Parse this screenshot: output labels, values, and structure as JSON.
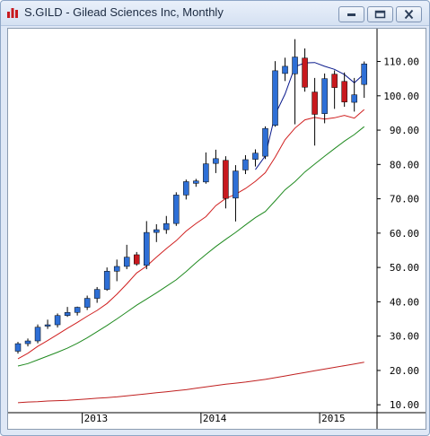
{
  "window": {
    "title": "S.GILD - Gilead Sciences Inc, Monthly",
    "controls": [
      "minimize",
      "maximize",
      "close"
    ]
  },
  "chart_data": {
    "type": "candlestick",
    "title": "",
    "symbol": "S.GILD",
    "ylim": [
      7.7,
      118.5
    ],
    "y_ticks": [
      "10.00",
      "20.00",
      "30.00",
      "40.00",
      "50.00",
      "60.00",
      "70.00",
      "80.00",
      "90.00",
      "100.00",
      "110.00"
    ],
    "x_ticks": [
      "2013",
      "2014",
      "2015"
    ],
    "grid": false,
    "colors": {
      "up": "#2e6fd6",
      "down": "#c8191e",
      "line_fast": "#0a1a8c",
      "line_mid": "#d01f1f",
      "line_slow": "#1f8a1f",
      "line_long": "#c02020"
    },
    "candles": [
      {
        "open": 25.6,
        "high": 28.3,
        "low": 24.9,
        "close": 27.8
      },
      {
        "open": 27.8,
        "high": 29.3,
        "low": 27.0,
        "close": 28.6
      },
      {
        "open": 28.6,
        "high": 33.4,
        "low": 27.9,
        "close": 32.6
      },
      {
        "open": 32.9,
        "high": 34.8,
        "low": 32.1,
        "close": 33.3
      },
      {
        "open": 33.3,
        "high": 36.6,
        "low": 32.5,
        "close": 36.0
      },
      {
        "open": 36.0,
        "high": 38.5,
        "low": 35.6,
        "close": 36.9
      },
      {
        "open": 36.9,
        "high": 38.6,
        "low": 36.0,
        "close": 38.4
      },
      {
        "open": 38.4,
        "high": 41.8,
        "low": 37.6,
        "close": 41.0
      },
      {
        "open": 41.0,
        "high": 44.3,
        "low": 39.7,
        "close": 43.6
      },
      {
        "open": 43.6,
        "high": 50.0,
        "low": 43.2,
        "close": 48.9
      },
      {
        "open": 48.9,
        "high": 52.3,
        "low": 46.0,
        "close": 50.3
      },
      {
        "open": 50.3,
        "high": 56.6,
        "low": 49.5,
        "close": 53.0
      },
      {
        "open": 53.7,
        "high": 54.5,
        "low": 50.5,
        "close": 51.0
      },
      {
        "open": 50.6,
        "high": 63.5,
        "low": 49.5,
        "close": 60.2
      },
      {
        "open": 60.2,
        "high": 62.6,
        "low": 57.4,
        "close": 61.0
      },
      {
        "open": 61.0,
        "high": 65.0,
        "low": 59.8,
        "close": 62.8
      },
      {
        "open": 62.8,
        "high": 71.9,
        "low": 62.1,
        "close": 71.1
      },
      {
        "open": 71.1,
        "high": 75.6,
        "low": 69.8,
        "close": 75.0
      },
      {
        "open": 74.5,
        "high": 75.8,
        "low": 73.5,
        "close": 75.2
      },
      {
        "open": 74.9,
        "high": 83.5,
        "low": 74.4,
        "close": 80.2
      },
      {
        "open": 80.3,
        "high": 84.3,
        "low": 77.5,
        "close": 81.7
      },
      {
        "open": 81.2,
        "high": 82.4,
        "low": 67.2,
        "close": 70.1
      },
      {
        "open": 70.2,
        "high": 79.8,
        "low": 63.4,
        "close": 78.1
      },
      {
        "open": 78.4,
        "high": 82.7,
        "low": 77.2,
        "close": 81.4
      },
      {
        "open": 81.5,
        "high": 84.4,
        "low": 79.4,
        "close": 83.3
      },
      {
        "open": 82.4,
        "high": 91.1,
        "low": 81.6,
        "close": 90.5
      },
      {
        "open": 91.4,
        "high": 110.1,
        "low": 91.0,
        "close": 107.3
      },
      {
        "open": 106.5,
        "high": 111.1,
        "low": 104.3,
        "close": 108.6
      },
      {
        "open": 106.4,
        "high": 116.5,
        "low": 91.7,
        "close": 111.3
      },
      {
        "open": 111.0,
        "high": 113.8,
        "low": 101.2,
        "close": 102.5
      },
      {
        "open": 101.1,
        "high": 105.2,
        "low": 85.5,
        "close": 94.6
      },
      {
        "open": 94.8,
        "high": 106.5,
        "low": 92.0,
        "close": 105.0
      },
      {
        "open": 106.3,
        "high": 107.4,
        "low": 96.2,
        "close": 102.4
      },
      {
        "open": 104.2,
        "high": 106.8,
        "low": 96.8,
        "close": 98.2
      },
      {
        "open": 98.1,
        "high": 105.2,
        "low": 95.4,
        "close": 100.3
      },
      {
        "open": 103.3,
        "high": 110.0,
        "low": 99.4,
        "close": 109.3
      }
    ],
    "series": [
      {
        "values": [
          null,
          null,
          null,
          null,
          null,
          null,
          null,
          null,
          null,
          null,
          null,
          null,
          null,
          null,
          null,
          null,
          null,
          null,
          null,
          null,
          null,
          null,
          null,
          null,
          78.5,
          82.5,
          94.5,
          100.5,
          108.5,
          109.6,
          109.7,
          108.6,
          107.7,
          106.2,
          103.8,
          106.4
        ]
      },
      {
        "values": [
          23.4,
          25.0,
          27.0,
          28.7,
          30.5,
          32.3,
          34.0,
          35.8,
          37.5,
          39.5,
          42.2,
          45.2,
          48.4,
          50.4,
          53.0,
          55.5,
          57.8,
          60.6,
          62.8,
          64.8,
          68.0,
          70.1,
          71.3,
          73.0,
          75.1,
          77.6,
          82.1,
          87.2,
          90.6,
          93.0,
          93.7,
          93.2,
          93.6,
          94.3,
          93.5,
          96.0
        ]
      },
      {
        "values": [
          21.3,
          22.0,
          23.1,
          24.2,
          25.3,
          26.5,
          27.9,
          29.5,
          31.3,
          33.1,
          35.0,
          37.0,
          39.0,
          40.8,
          42.6,
          44.5,
          46.4,
          48.8,
          51.4,
          53.8,
          56.1,
          58.2,
          60.2,
          62.4,
          64.5,
          66.3,
          69.4,
          72.6,
          75.0,
          77.8,
          80.1,
          82.4,
          84.6,
          86.8,
          88.7,
          91.0
        ]
      },
      {
        "values": [
          10.6,
          10.8,
          10.9,
          11.1,
          11.2,
          11.3,
          11.5,
          11.7,
          11.9,
          12.1,
          12.3,
          12.6,
          12.9,
          13.2,
          13.5,
          13.8,
          14.1,
          14.4,
          14.8,
          15.2,
          15.6,
          16.0,
          16.3,
          16.6,
          17.0,
          17.4,
          17.9,
          18.4,
          18.9,
          19.4,
          19.9,
          20.4,
          20.9,
          21.4,
          21.9,
          22.4
        ]
      }
    ]
  }
}
